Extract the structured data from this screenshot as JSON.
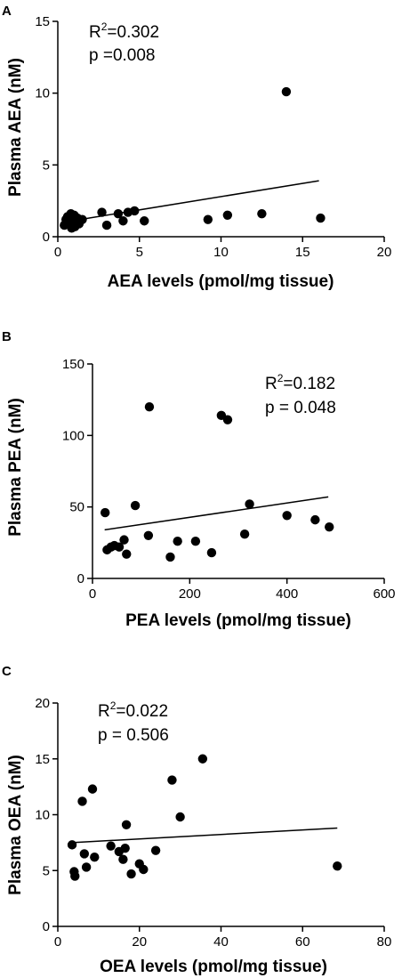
{
  "figure": {
    "colors": {
      "ink": "#000000",
      "background": "#ffffff"
    }
  },
  "chart_data": [
    {
      "type": "scatter",
      "panel": "A",
      "xlabel": "AEA levels (pmol/mg tissue)",
      "ylabel": "Plasma AEA (nM)",
      "xlim": [
        0,
        20
      ],
      "ylim": [
        0,
        15
      ],
      "xticks": [
        0,
        5,
        10,
        15,
        20
      ],
      "yticks": [
        0,
        5,
        10,
        15
      ],
      "annotation": {
        "r2_prefix": "R",
        "r2_sup": "2",
        "r2_value": "=0.302",
        "p_text": "p =0.008"
      },
      "points": [
        {
          "x": 0.4,
          "y": 0.8
        },
        {
          "x": 0.5,
          "y": 1.2
        },
        {
          "x": 0.6,
          "y": 1.4
        },
        {
          "x": 0.7,
          "y": 1.0
        },
        {
          "x": 0.8,
          "y": 1.6
        },
        {
          "x": 0.85,
          "y": 0.6
        },
        {
          "x": 0.9,
          "y": 1.3
        },
        {
          "x": 0.95,
          "y": 0.9
        },
        {
          "x": 1.0,
          "y": 1.5
        },
        {
          "x": 1.05,
          "y": 0.7
        },
        {
          "x": 1.1,
          "y": 1.1
        },
        {
          "x": 1.2,
          "y": 1.3
        },
        {
          "x": 1.3,
          "y": 0.9
        },
        {
          "x": 1.5,
          "y": 1.2
        },
        {
          "x": 2.7,
          "y": 1.7
        },
        {
          "x": 3.0,
          "y": 0.8
        },
        {
          "x": 3.7,
          "y": 1.6
        },
        {
          "x": 4.0,
          "y": 1.1
        },
        {
          "x": 4.3,
          "y": 1.7
        },
        {
          "x": 4.7,
          "y": 1.8
        },
        {
          "x": 5.3,
          "y": 1.1
        },
        {
          "x": 9.2,
          "y": 1.2
        },
        {
          "x": 10.4,
          "y": 1.5
        },
        {
          "x": 12.5,
          "y": 1.6
        },
        {
          "x": 14.0,
          "y": 10.1
        },
        {
          "x": 16.1,
          "y": 1.3
        }
      ],
      "fit_line": {
        "x": [
          0.3,
          16.0
        ],
        "y": [
          1.0,
          3.9
        ]
      }
    },
    {
      "type": "scatter",
      "panel": "B",
      "xlabel": "PEA levels (pmol/mg tissue)",
      "ylabel": "Plasma PEA (nM)",
      "xlim": [
        0,
        600
      ],
      "ylim": [
        0,
        150
      ],
      "xticks": [
        0,
        200,
        400,
        600
      ],
      "yticks": [
        0,
        50,
        100,
        150
      ],
      "annotation": {
        "r2_prefix": "R",
        "r2_sup": "2",
        "r2_value": "=0.182",
        "p_text": "p = 0.048"
      },
      "points": [
        {
          "x": 26,
          "y": 46
        },
        {
          "x": 30,
          "y": 20
        },
        {
          "x": 38,
          "y": 22
        },
        {
          "x": 45,
          "y": 23
        },
        {
          "x": 55,
          "y": 22
        },
        {
          "x": 65,
          "y": 27
        },
        {
          "x": 70,
          "y": 17
        },
        {
          "x": 88,
          "y": 51
        },
        {
          "x": 115,
          "y": 30
        },
        {
          "x": 117,
          "y": 120
        },
        {
          "x": 160,
          "y": 15
        },
        {
          "x": 175,
          "y": 26
        },
        {
          "x": 212,
          "y": 26
        },
        {
          "x": 245,
          "y": 18
        },
        {
          "x": 265,
          "y": 114
        },
        {
          "x": 278,
          "y": 111
        },
        {
          "x": 313,
          "y": 31
        },
        {
          "x": 323,
          "y": 52
        },
        {
          "x": 400,
          "y": 44
        },
        {
          "x": 458,
          "y": 41
        },
        {
          "x": 487,
          "y": 36
        }
      ],
      "fit_line": {
        "x": [
          25,
          485
        ],
        "y": [
          34,
          57
        ]
      }
    },
    {
      "type": "scatter",
      "panel": "C",
      "xlabel": "OEA levels (pmol/mg tissue)",
      "ylabel": "Plasma OEA (nM)",
      "xlim": [
        0,
        80
      ],
      "ylim": [
        0,
        20
      ],
      "xticks": [
        0,
        20,
        40,
        60,
        80
      ],
      "yticks": [
        0,
        5,
        10,
        15,
        20
      ],
      "annotation": {
        "r2_prefix": "R",
        "r2_sup": "2",
        "r2_value": "=0.022",
        "p_text": "p = 0.506"
      },
      "points": [
        {
          "x": 3.5,
          "y": 7.3
        },
        {
          "x": 4.0,
          "y": 4.9
        },
        {
          "x": 4.2,
          "y": 4.5
        },
        {
          "x": 6.0,
          "y": 11.2
        },
        {
          "x": 6.5,
          "y": 6.5
        },
        {
          "x": 7.0,
          "y": 5.3
        },
        {
          "x": 8.5,
          "y": 12.3
        },
        {
          "x": 9.0,
          "y": 6.2
        },
        {
          "x": 13.0,
          "y": 7.2
        },
        {
          "x": 15.0,
          "y": 6.7
        },
        {
          "x": 16.0,
          "y": 6.0
        },
        {
          "x": 16.5,
          "y": 7.0
        },
        {
          "x": 16.8,
          "y": 9.1
        },
        {
          "x": 18.0,
          "y": 4.7
        },
        {
          "x": 20.0,
          "y": 5.6
        },
        {
          "x": 21.0,
          "y": 5.1
        },
        {
          "x": 24.0,
          "y": 6.8
        },
        {
          "x": 28.0,
          "y": 13.1
        },
        {
          "x": 30.0,
          "y": 9.8
        },
        {
          "x": 35.5,
          "y": 15.0
        },
        {
          "x": 68.5,
          "y": 5.4
        }
      ],
      "fit_line": {
        "x": [
          3.5,
          68.5
        ],
        "y": [
          7.5,
          8.8
        ]
      }
    }
  ]
}
